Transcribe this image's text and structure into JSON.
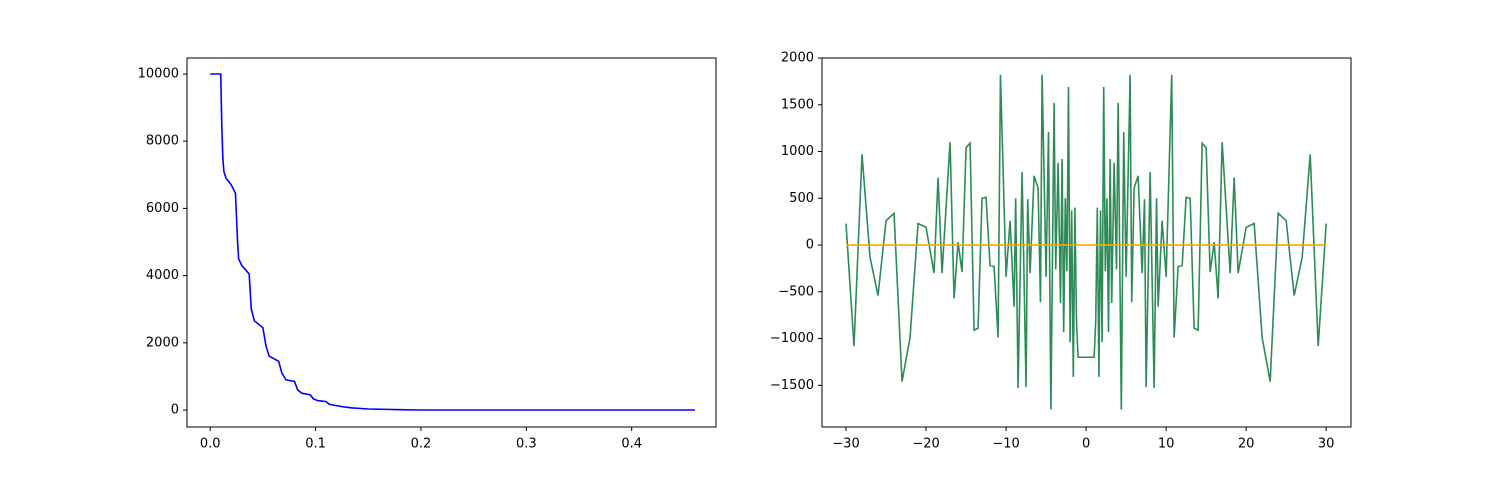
{
  "chart_data": [
    {
      "type": "line",
      "xlim": [
        -0.022,
        0.48
      ],
      "ylim": [
        -506,
        10476
      ],
      "xticks": [
        {
          "value": 0,
          "label": "0.0"
        },
        0.1,
        0.2,
        0.3,
        0.4
      ],
      "yticks": [
        0,
        2000,
        4000,
        6000,
        8000,
        10000
      ],
      "series": [
        {
          "color": "#0000ff",
          "x": [
            0,
            0.01,
            0.011,
            0.012,
            0.013,
            0.015,
            0.02,
            0.024,
            0.026,
            0.027,
            0.03,
            0.037,
            0.039,
            0.042,
            0.05,
            0.053,
            0.056,
            0.065,
            0.068,
            0.072,
            0.08,
            0.083,
            0.087,
            0.095,
            0.098,
            0.102,
            0.11,
            0.113,
            0.118,
            0.125,
            0.13,
            0.135,
            0.15,
            0.18,
            0.2,
            0.3,
            0.46
          ],
          "values": [
            10000,
            10000,
            8500,
            7500,
            7100,
            6900,
            6700,
            6450,
            5000,
            4500,
            4300,
            4050,
            3000,
            2650,
            2450,
            1900,
            1600,
            1450,
            1100,
            900,
            850,
            600,
            500,
            450,
            330,
            280,
            250,
            170,
            140,
            100,
            80,
            60,
            30,
            10,
            0,
            0,
            0
          ]
        }
      ]
    },
    {
      "type": "line",
      "xlim": [
        -33,
        33.1
      ],
      "ylim": [
        -1946,
        2000
      ],
      "xticks": [
        {
          "value": -30,
          "label": "−30"
        },
        {
          "value": -20,
          "label": "−20"
        },
        {
          "value": -10,
          "label": "−10"
        },
        0,
        10,
        20,
        30
      ],
      "yticks": [
        {
          "value": -1500,
          "label": "−1500"
        },
        {
          "value": -1000,
          "label": "−1000"
        },
        {
          "value": -500,
          "label": "−500"
        },
        0,
        500,
        1000,
        1500,
        2000
      ],
      "series": [
        {
          "color": "#2e8b57",
          "x": [
            -30,
            -29,
            -28,
            -27,
            -26,
            -25,
            -24,
            -23,
            -22,
            -21,
            -20,
            -19,
            -18.5,
            -18,
            -17,
            -16.5,
            -16,
            -15.5,
            -15,
            -14.5,
            -14,
            -13.5,
            -13,
            -12.5,
            -12,
            -11.5,
            -11,
            -10.7,
            -10,
            -9.5,
            -9,
            -8.8,
            -8.5,
            -8,
            -7.5,
            -7.3,
            -7,
            -6.5,
            -6,
            -5.7,
            -5.5,
            -5,
            -4.7,
            -4.4,
            -4,
            -3.8,
            -3.5,
            -3.2,
            -3,
            -2.8,
            -2.6,
            -2.4,
            -2.2,
            -2,
            -1.8,
            -1.6,
            -1.4,
            -1.2,
            -1,
            0,
            1,
            1.2,
            1.4,
            1.6,
            1.8,
            2,
            2.2,
            2.4,
            2.6,
            2.8,
            3,
            3.2,
            3.5,
            3.8,
            4,
            4.4,
            4.7,
            5,
            5.5,
            5.7,
            6,
            6.5,
            7,
            7.3,
            7.5,
            8,
            8.5,
            8.8,
            9,
            9.5,
            10,
            10.7,
            11,
            11.5,
            12,
            12.5,
            13,
            13.5,
            14,
            14.5,
            15,
            15.5,
            16,
            16.5,
            17,
            18,
            18.5,
            19,
            20,
            21,
            22,
            23,
            24,
            25,
            26,
            27,
            28,
            29,
            30
          ],
          "values": [
            230,
            -1080,
            970,
            -130,
            -540,
            260,
            340,
            -1460,
            -990,
            230,
            190,
            -300,
            720,
            -300,
            1100,
            -570,
            30,
            -290,
            1040,
            1090,
            -910,
            -890,
            500,
            510,
            -220,
            -230,
            -990,
            1820,
            -340,
            260,
            -660,
            500,
            -1530,
            780,
            -1520,
            490,
            -300,
            740,
            610,
            -610,
            1820,
            -340,
            1210,
            -1760,
            1520,
            -260,
            880,
            -620,
            920,
            -930,
            500,
            -280,
            1690,
            -1040,
            370,
            -1410,
            400,
            -820,
            -1200,
            -1200,
            -1200,
            -820,
            400,
            -1410,
            370,
            -1040,
            1690,
            -280,
            500,
            -930,
            920,
            -620,
            880,
            -260,
            1520,
            -1760,
            1210,
            -340,
            1820,
            -610,
            610,
            740,
            -300,
            490,
            -1520,
            780,
            -1530,
            500,
            -660,
            260,
            -340,
            1820,
            -990,
            -230,
            -220,
            510,
            500,
            -890,
            -910,
            1090,
            1040,
            -290,
            30,
            -570,
            1100,
            -300,
            720,
            -300,
            190,
            230,
            -990,
            -1460,
            340,
            260,
            -540,
            -130,
            970,
            -1080,
            230
          ]
        },
        {
          "color": "#ffa500",
          "x": [
            -30,
            30
          ],
          "values": [
            0,
            0
          ]
        }
      ]
    }
  ]
}
